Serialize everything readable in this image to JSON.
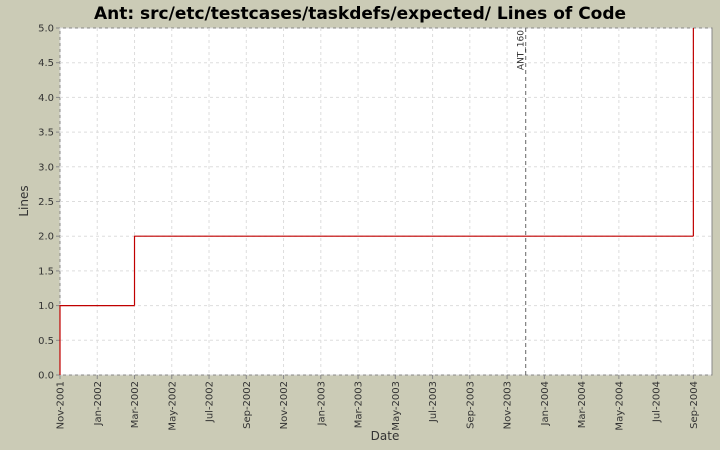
{
  "chart_data": {
    "type": "step",
    "title": "Ant: src/etc/testcases/taskdefs/expected/ Lines of Code",
    "x_label": "Date",
    "y_label": "Lines",
    "series": [
      {
        "name": "Lines",
        "color": "#c00000",
        "x": [
          "2001-11",
          "2002-03",
          "2004-09"
        ],
        "values": [
          1,
          2,
          5
        ]
      }
    ],
    "xlim": [
      "2001-11",
      "2004-10"
    ],
    "xticks": [
      {
        "value": "2001-11",
        "label": "Nov-2001"
      },
      {
        "value": "2002-01",
        "label": "Jan-2002"
      },
      {
        "value": "2002-03",
        "label": "Mar-2002"
      },
      {
        "value": "2002-05",
        "label": "May-2002"
      },
      {
        "value": "2002-07",
        "label": "Jul-2002"
      },
      {
        "value": "2002-09",
        "label": "Sep-2002"
      },
      {
        "value": "2002-11",
        "label": "Nov-2002"
      },
      {
        "value": "2003-01",
        "label": "Jan-2003"
      },
      {
        "value": "2003-03",
        "label": "Mar-2003"
      },
      {
        "value": "2003-05",
        "label": "May-2003"
      },
      {
        "value": "2003-07",
        "label": "Jul-2003"
      },
      {
        "value": "2003-09",
        "label": "Sep-2003"
      },
      {
        "value": "2003-11",
        "label": "Nov-2003"
      },
      {
        "value": "2004-01",
        "label": "Jan-2004"
      },
      {
        "value": "2004-03",
        "label": "Mar-2004"
      },
      {
        "value": "2004-05",
        "label": "May-2004"
      },
      {
        "value": "2004-07",
        "label": "Jul-2004"
      },
      {
        "value": "2004-09",
        "label": "Sep-2004"
      }
    ],
    "ylim": [
      0,
      5
    ],
    "yticks": [
      {
        "value": 0,
        "label": "0.0"
      },
      0.5,
      {
        "value": 1,
        "label": "1.0"
      },
      1.5,
      {
        "value": 2,
        "label": "2.0"
      },
      2.5,
      {
        "value": 3,
        "label": "3.0"
      },
      3.5,
      {
        "value": 4,
        "label": "4.0"
      },
      4.5,
      {
        "value": 5,
        "label": "5.0"
      }
    ],
    "grid": true,
    "annotations": [
      {
        "x": "2003-12",
        "label": "ANT_160"
      }
    ]
  }
}
